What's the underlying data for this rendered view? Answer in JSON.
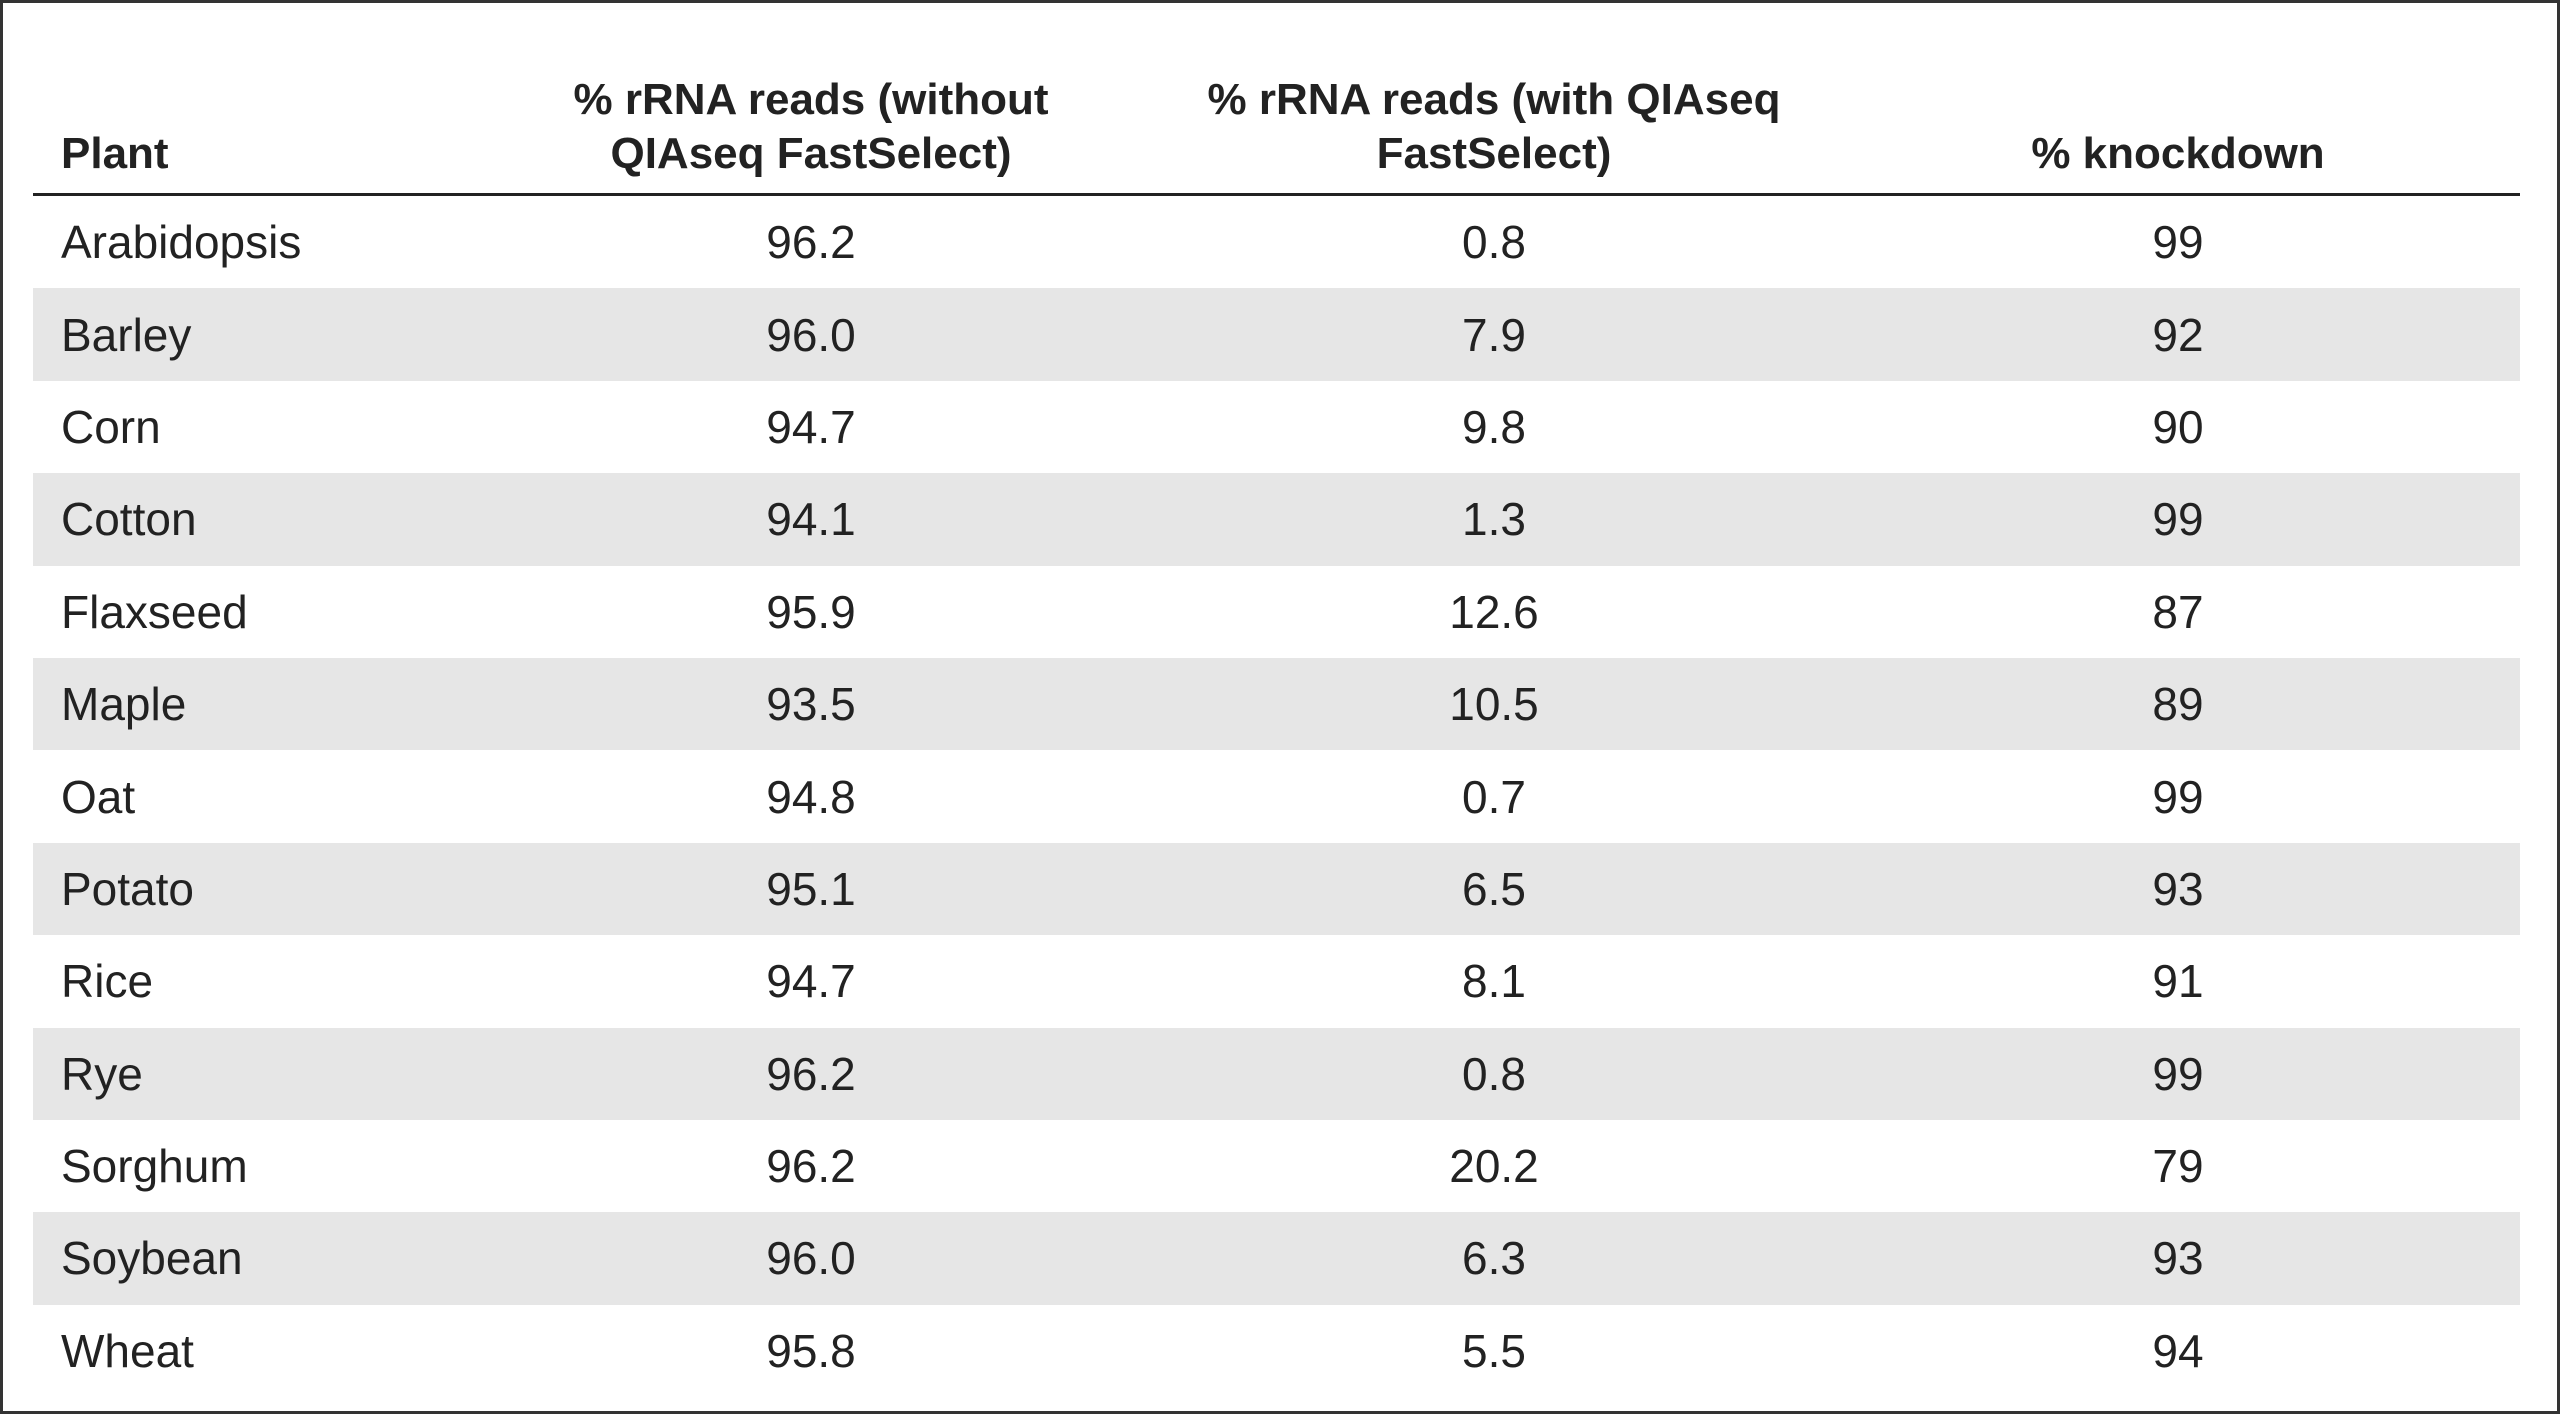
{
  "header": {
    "columns": [
      [
        "Plant"
      ],
      [
        "% rRNA reads (without",
        "QIAseq FastSelect)"
      ],
      [
        "% rRNA reads (with QIAseq",
        "FastSelect)"
      ],
      [
        "% knockdown"
      ]
    ]
  },
  "table": {
    "rows": [
      [
        "Arabidopsis",
        "96.2",
        "0.8",
        "99"
      ],
      [
        "Barley",
        "96.0",
        "7.9",
        "92"
      ],
      [
        "Corn",
        "94.7",
        "9.8",
        "90"
      ],
      [
        "Cotton",
        "94.1",
        "1.3",
        "99"
      ],
      [
        "Flaxseed",
        "95.9",
        "12.6",
        "87"
      ],
      [
        "Maple",
        "93.5",
        "10.5",
        "89"
      ],
      [
        "Oat",
        "94.8",
        "0.7",
        "99"
      ],
      [
        "Potato",
        "95.1",
        "6.5",
        "93"
      ],
      [
        "Rice",
        "94.7",
        "8.1",
        "91"
      ],
      [
        "Rye",
        "96.2",
        "0.8",
        "99"
      ],
      [
        "Sorghum",
        "96.2",
        "20.2",
        "79"
      ],
      [
        "Soybean",
        "96.0",
        "6.3",
        "93"
      ],
      [
        "Wheat",
        "95.8",
        "5.5",
        "94"
      ]
    ]
  }
}
